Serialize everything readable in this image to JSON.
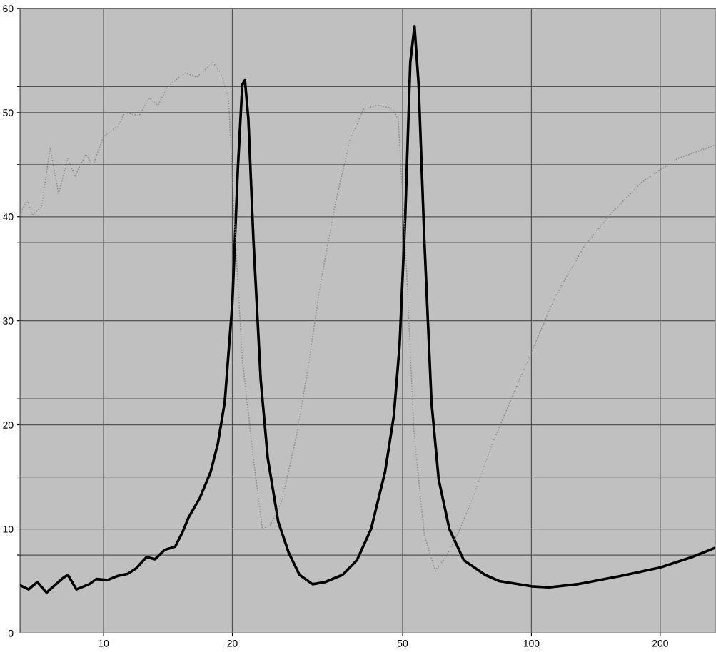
{
  "chart_data": {
    "type": "line",
    "log": "x",
    "grid": true,
    "marker": "none",
    "xlim": [
      6.38,
      269
    ],
    "xticks": [
      10,
      20,
      50,
      100,
      200
    ],
    "ylim": [
      0,
      60
    ],
    "yticks": [
      0,
      {
        "value": 7.5,
        "label": null
      },
      10,
      {
        "value": 15,
        "label": null
      },
      20,
      {
        "value": 22.5,
        "label": null
      },
      30,
      {
        "value": 37.5,
        "label": null
      },
      40,
      {
        "value": 45,
        "label": null
      },
      50,
      {
        "value": 52.5,
        "label": null
      },
      60
    ],
    "series": [
      {
        "color": "#000000",
        "line_style": "solid",
        "x": [
          6.38,
          6.68,
          7.0,
          7.36,
          7.64,
          8.04,
          8.25,
          8.64,
          9.26,
          9.62,
          10.2,
          10.8,
          11.4,
          11.9,
          12.6,
          13.2,
          13.9,
          14.7,
          15.3,
          15.8,
          16.8,
          17.8,
          18.5,
          19.2,
          20.0,
          20.6,
          21.1,
          21.4,
          21.8,
          22.4,
          23.3,
          24.2,
          25.6,
          27.1,
          28.7,
          30.8,
          32.9,
          36.2,
          39.1,
          42.2,
          45.5,
          47.7,
          49.2,
          50.7,
          52.1,
          53.3,
          54.5,
          56.2,
          58.4,
          60.7,
          64.3,
          69.5,
          77.9,
          84.1,
          100,
          110,
          128,
          162,
          200,
          237,
          269
        ],
        "values": [
          4.6,
          4.2,
          4.9,
          3.9,
          4.5,
          5.3,
          5.6,
          4.2,
          4.7,
          5.2,
          5.1,
          5.5,
          5.7,
          6.2,
          7.3,
          7.1,
          8.0,
          8.3,
          9.7,
          11.1,
          13.0,
          15.5,
          18.2,
          22.2,
          31.7,
          44.6,
          52.7,
          53.1,
          49.4,
          37.8,
          24.3,
          16.8,
          10.7,
          7.7,
          5.6,
          4.7,
          4.9,
          5.6,
          7.0,
          10.0,
          15.5,
          20.9,
          27.7,
          39.9,
          54.8,
          58.3,
          52.7,
          37.8,
          22.2,
          14.8,
          10.0,
          7.0,
          5.6,
          5.0,
          4.5,
          4.4,
          4.7,
          5.5,
          6.3,
          7.3,
          8.2
        ]
      },
      {
        "color": "#808080",
        "line_style": "dotted",
        "x": [
          6.38,
          6.63,
          6.81,
          7.16,
          7.5,
          7.85,
          8.25,
          8.58,
          9.09,
          9.44,
          10,
          10.8,
          11.2,
          12.1,
          12.8,
          13.4,
          14.1,
          15.0,
          15.5,
          16.5,
          18.0,
          18.8,
          19.6,
          20.2,
          21.1,
          22.4,
          23.5,
          24.6,
          26.1,
          28.2,
          29.9,
          32.2,
          34.8,
          37.6,
          40.6,
          43.8,
          47.3,
          48.8,
          50.7,
          53.1,
          56.2,
          59.6,
          63.1,
          68.1,
          73.6,
          81.0,
          89.1,
          100,
          114,
          133,
          155,
          181,
          220,
          269
        ],
        "values": [
          40.2,
          41.6,
          40.2,
          40.9,
          46.6,
          42.2,
          45.6,
          43.9,
          46.0,
          44.9,
          47.7,
          48.7,
          50.0,
          49.7,
          51.4,
          50.7,
          52.4,
          53.4,
          53.8,
          53.4,
          54.8,
          53.8,
          51.4,
          39.9,
          26.3,
          16.8,
          10.0,
          10.4,
          12.7,
          18.8,
          24.9,
          33.8,
          41.2,
          47.3,
          50.4,
          50.7,
          50.4,
          49.4,
          37.8,
          19.5,
          9.4,
          6.0,
          7.3,
          10.0,
          13.4,
          18.2,
          22.2,
          27.0,
          32.4,
          37.2,
          40.5,
          43.3,
          45.6,
          46.9
        ]
      }
    ]
  }
}
